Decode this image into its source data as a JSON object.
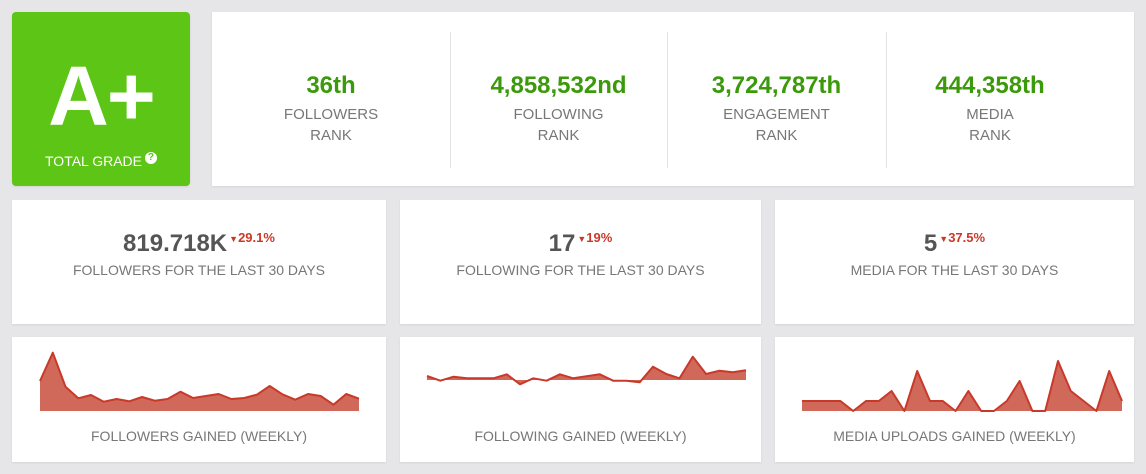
{
  "grade": {
    "value": "A+",
    "label": "TOTAL GRADE",
    "help_icon": "question-circle-icon",
    "color": "#5cc515"
  },
  "ranks": [
    {
      "value": "36th",
      "line1": "FOLLOWERS",
      "line2": "RANK"
    },
    {
      "value": "4,858,532nd",
      "line1": "FOLLOWING",
      "line2": "RANK"
    },
    {
      "value": "3,724,787th",
      "line1": "ENGAGEMENT",
      "line2": "RANK"
    },
    {
      "value": "444,358th",
      "line1": "MEDIA",
      "line2": "RANK"
    }
  ],
  "stats": [
    {
      "value": "819.718K",
      "change": "29.1%",
      "direction": "down",
      "label": "FOLLOWERS FOR THE LAST 30 DAYS"
    },
    {
      "value": "17",
      "change": "19%",
      "direction": "down",
      "label": "FOLLOWING FOR THE LAST 30 DAYS"
    },
    {
      "value": "5",
      "change": "37.5%",
      "direction": "down",
      "label": "MEDIA FOR THE LAST 30 DAYS"
    }
  ],
  "colors": {
    "rank_green": "#3a9a0a",
    "decline_red": "#c9392a",
    "spark_fill": "#d0695a"
  },
  "chart_data": [
    {
      "type": "area",
      "title": "FOLLOWERS GAINED (WEEKLY)",
      "values": [
        90,
        175,
        73,
        38,
        48,
        28,
        36,
        29,
        42,
        31,
        36,
        58,
        39,
        45,
        51,
        36,
        39,
        49,
        75,
        50,
        34,
        51,
        45,
        19,
        51,
        37
      ]
    },
    {
      "type": "area",
      "title": "FOLLOWING GAINED (WEEKLY)",
      "values": [
        12,
        -2,
        10,
        5,
        5,
        5,
        17,
        -13,
        5,
        -2,
        17,
        5,
        11,
        17,
        -2,
        -2,
        -7,
        40,
        18,
        5,
        70,
        18,
        28,
        23,
        29
      ]
    },
    {
      "type": "area",
      "title": "MEDIA UPLOADS GAINED (WEEKLY)",
      "values": [
        1,
        1,
        1,
        1,
        0,
        1,
        1,
        2,
        0,
        4,
        1,
        1,
        0,
        2,
        0,
        0,
        1,
        3,
        0,
        0,
        5,
        2,
        1,
        0,
        4,
        1
      ]
    }
  ]
}
